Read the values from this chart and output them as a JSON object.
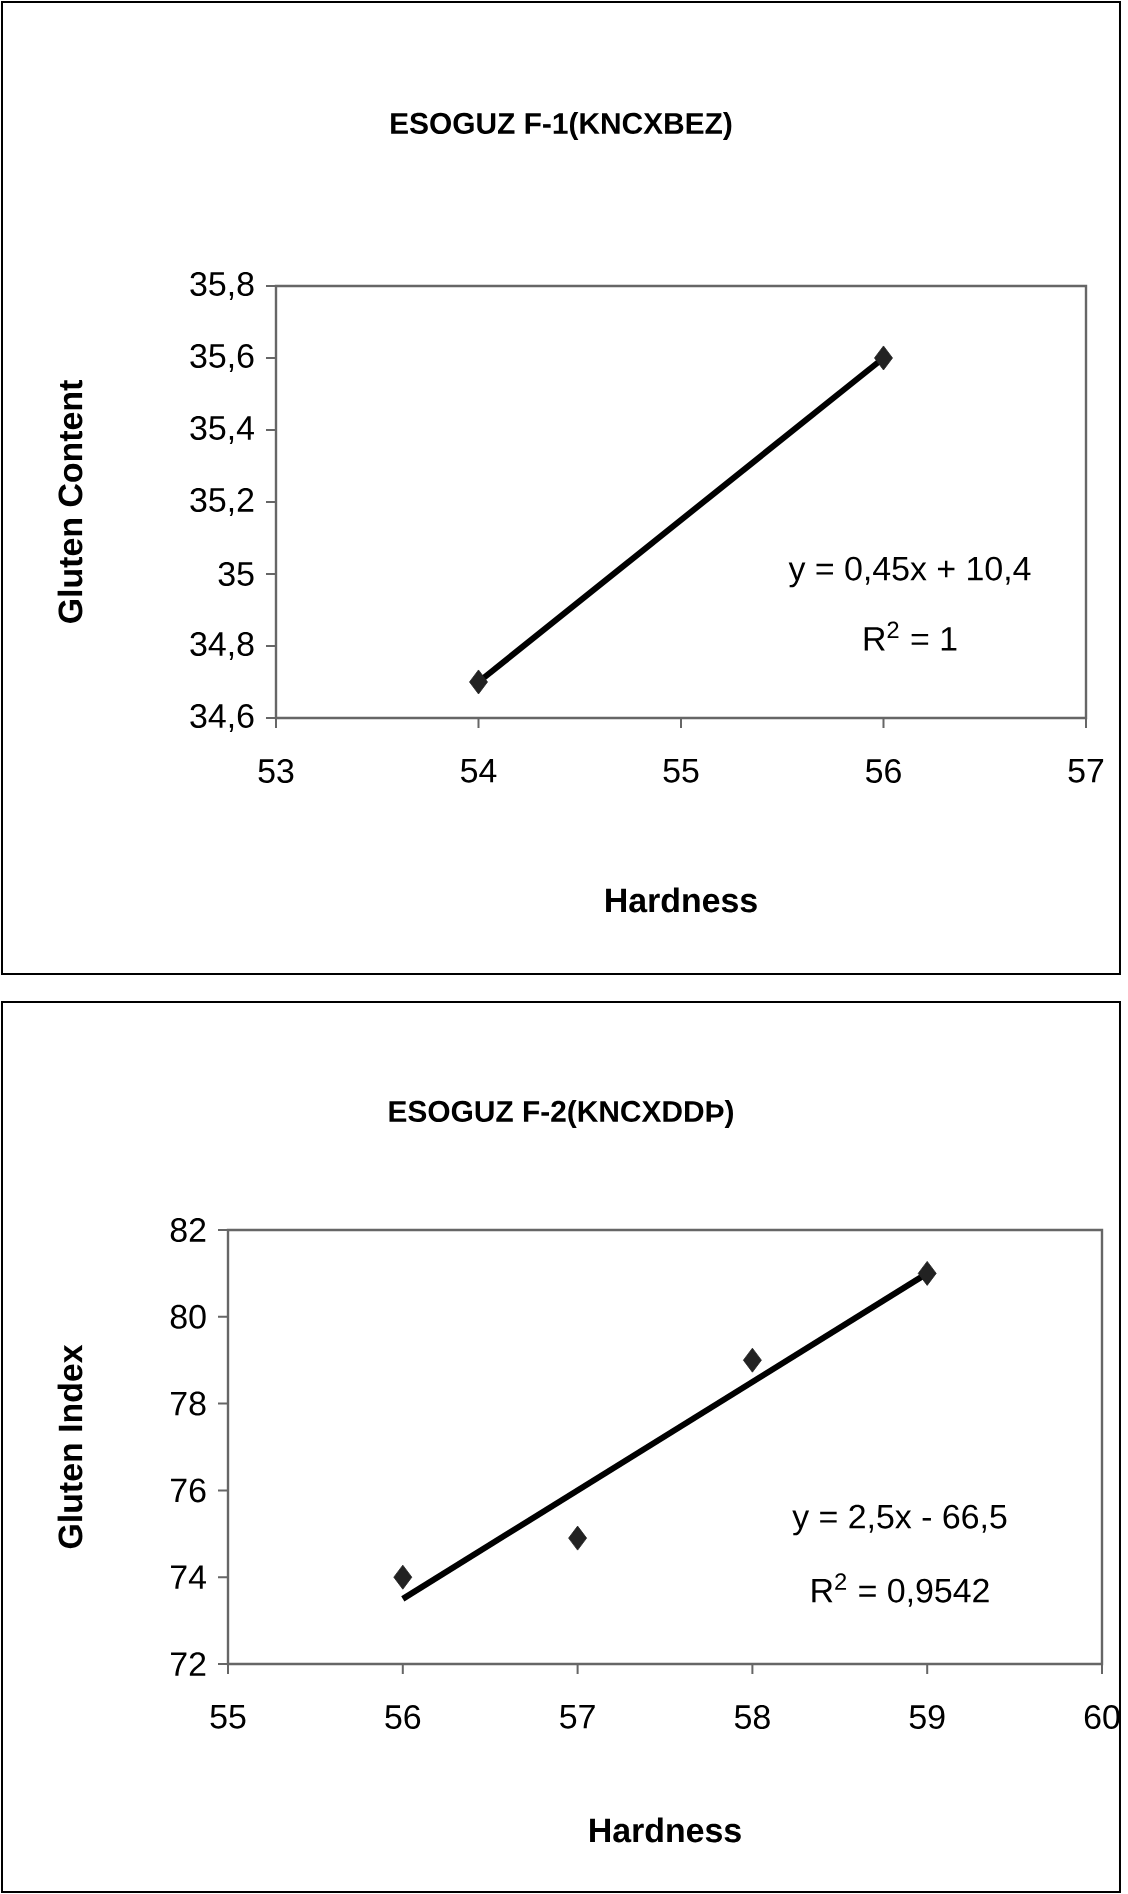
{
  "chart_data": [
    {
      "type": "scatter",
      "title": "ESOGUZ F-1(KNCXBEZ)",
      "xlabel": "Hardness",
      "ylabel": "Gluten Content",
      "xlim": [
        53,
        57
      ],
      "xticks": [
        53,
        54,
        55,
        56,
        57
      ],
      "ylim": [
        34.6,
        35.8
      ],
      "yticks": [
        {
          "value": 34.6,
          "label": "34,6"
        },
        {
          "value": 34.8,
          "label": "34,8"
        },
        35,
        {
          "value": 35.2,
          "label": "35,2"
        },
        {
          "value": 35.4,
          "label": "35,4"
        },
        {
          "value": 35.6,
          "label": "35,6"
        },
        {
          "value": 35.8,
          "label": "35,8"
        }
      ],
      "series": [
        {
          "color": "#222222",
          "marker": "diamond",
          "x": [
            54,
            56
          ],
          "values": [
            34.7,
            35.6
          ]
        },
        {
          "type": "line",
          "color": "#000000",
          "marker": "none",
          "x": [
            54,
            56
          ],
          "values": [
            34.7,
            35.6
          ]
        }
      ],
      "annotations": [
        "y = 0,45x + 10,4",
        "R$^{2}$ = 1"
      ]
    },
    {
      "type": "scatter",
      "title": "ESOGUZ F-2(KNCXDDÞ)",
      "xlabel": "Hardness",
      "ylabel": "Gluten Index",
      "xlim": [
        55,
        60
      ],
      "xticks": [
        55,
        56,
        57,
        58,
        59,
        60
      ],
      "ylim": [
        72,
        82
      ],
      "yticks": [
        72,
        74,
        76,
        78,
        80,
        82
      ],
      "series": [
        {
          "color": "#222222",
          "marker": "diamond",
          "x": [
            56,
            57,
            58,
            59
          ],
          "values": [
            74,
            74.9,
            79,
            81
          ]
        },
        {
          "type": "line",
          "color": "#000000",
          "marker": "none",
          "x": [
            56,
            59
          ],
          "values": [
            73.5,
            81
          ]
        }
      ],
      "annotations": [
        "y = 2,5x - 66,5",
        "R$^{2}$ = 0,9542"
      ]
    }
  ]
}
